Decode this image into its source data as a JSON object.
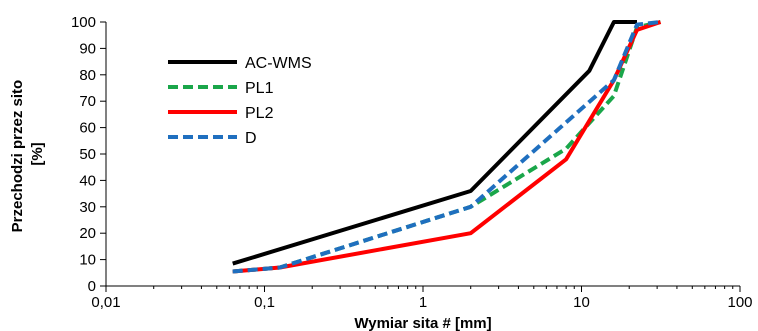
{
  "chart_data": {
    "type": "line",
    "xlabel": "Wymiar sita # [mm]",
    "ylabel_lines": [
      "Przechodzi przez sito",
      "[%]"
    ],
    "xscale": "log",
    "xlim": [
      0.01,
      100
    ],
    "ylim": [
      0,
      100
    ],
    "x_ticks": [
      0.01,
      0.1,
      1,
      10,
      100
    ],
    "x_tick_labels": [
      "0,01",
      "0,1",
      "1",
      "10",
      "100"
    ],
    "y_ticks": [
      0,
      10,
      20,
      30,
      40,
      50,
      60,
      70,
      80,
      90,
      100
    ],
    "y_tick_labels": [
      "0",
      "10",
      "20",
      "30",
      "40",
      "50",
      "60",
      "70",
      "80",
      "90",
      "100"
    ],
    "grid": false,
    "legend_position": "top-left",
    "series": [
      {
        "name": "AC-WMS",
        "color": "#000000",
        "style": "solid",
        "x": [
          0.063,
          2,
          11.2,
          16,
          22.4
        ],
        "y": [
          8.5,
          36,
          81.5,
          100,
          100
        ]
      },
      {
        "name": "PL1",
        "color": "#1aa64a",
        "style": "dashed",
        "x": [
          0.063,
          0.125,
          2,
          8,
          16,
          22.4,
          31.5
        ],
        "y": [
          5.5,
          7,
          30,
          52,
          72,
          98,
          100
        ]
      },
      {
        "name": "PL2",
        "color": "#ff0000",
        "style": "solid",
        "x": [
          0.063,
          0.125,
          2,
          8,
          16,
          22.4,
          31.5
        ],
        "y": [
          5.5,
          7,
          20,
          48,
          78,
          97,
          100
        ]
      },
      {
        "name": "D",
        "color": "#1f6fbf",
        "style": "dashed",
        "x": [
          0.063,
          0.125,
          2,
          16,
          22.4,
          31.5
        ],
        "y": [
          5.5,
          7,
          30,
          78,
          99,
          100
        ]
      }
    ]
  }
}
